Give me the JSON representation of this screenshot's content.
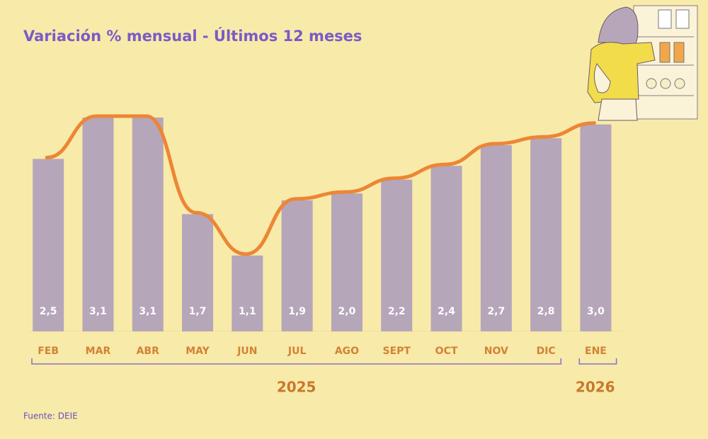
{
  "chart_data": {
    "type": "bar",
    "title": "Variación % mensual - Últimos 12 meses",
    "categories": [
      "FEB",
      "MAR",
      "ABR",
      "MAY",
      "JUN",
      "JUL",
      "AGO",
      "SEPT",
      "OCT",
      "NOV",
      "DIC",
      "ENE"
    ],
    "values": [
      2.5,
      3.1,
      3.1,
      1.7,
      1.1,
      1.9,
      2.0,
      2.2,
      2.4,
      2.7,
      2.8,
      3.0
    ],
    "value_labels": [
      "2,5",
      "3,1",
      "3,1",
      "1,7",
      "1,1",
      "1,9",
      "2,0",
      "2,2",
      "2,4",
      "2,7",
      "2,8",
      "3,0"
    ],
    "color": "#b5a6ba",
    "line_color": "#ec8636",
    "groups": [
      {
        "label": "2025",
        "count": 11
      },
      {
        "label": "2026",
        "count": 1
      }
    ],
    "source": "Fuente: DEIE"
  }
}
